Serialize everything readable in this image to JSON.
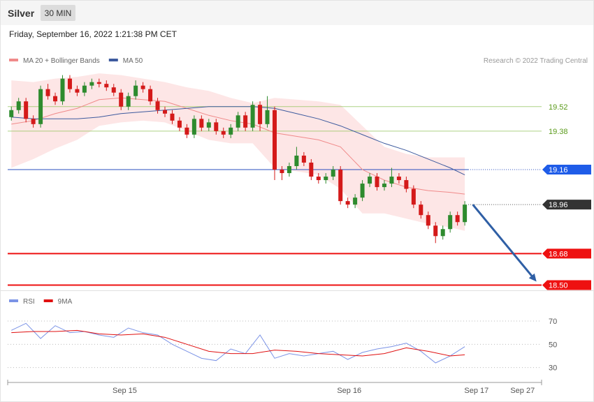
{
  "chart_data": {
    "type": "candlestick",
    "title": "Silver",
    "interval": "30 MIN",
    "subtitle": "Friday, September 16, 2022 1:21:38 PM CET",
    "credit": "Research © 2022 Trading Central",
    "up_color": "#2e8b2e",
    "down_color": "#d41a1a",
    "xlim": [
      -0.5,
      72.5
    ],
    "ylim": [
      18.47,
      19.89
    ],
    "xticks": [
      {
        "value": 15.5,
        "label": "Sep 15"
      },
      {
        "value": 46.2,
        "label": "Sep 16"
      },
      {
        "value": 63.6,
        "label": "Sep 17"
      },
      {
        "value": 69.9,
        "label": "Sep 27"
      }
    ],
    "open": [
      19.46,
      19.5,
      19.55,
      19.45,
      19.42,
      19.62,
      19.58,
      19.55,
      19.68,
      19.62,
      19.6,
      19.64,
      19.66,
      19.65,
      19.63,
      19.6,
      19.52,
      19.58,
      19.64,
      19.62,
      19.55,
      19.5,
      19.48,
      19.44,
      19.4,
      19.36,
      19.45,
      19.4,
      19.43,
      19.38,
      19.36,
      19.4,
      19.47,
      19.4,
      19.53,
      19.42,
      19.5,
      19.16,
      19.14,
      19.18,
      19.24,
      19.2,
      19.12,
      19.1,
      19.12,
      19.16,
      18.98,
      18.96,
      19.0,
      19.08,
      19.12,
      19.06,
      19.08,
      19.12,
      19.1,
      19.05,
      18.96,
      18.9,
      18.84,
      18.78,
      18.82,
      18.9,
      18.86
    ],
    "high": [
      19.52,
      19.57,
      19.57,
      19.47,
      19.64,
      19.65,
      19.6,
      19.7,
      19.7,
      19.64,
      19.66,
      19.68,
      19.68,
      19.67,
      19.65,
      19.62,
      19.6,
      19.67,
      19.66,
      19.64,
      19.57,
      19.52,
      19.5,
      19.46,
      19.42,
      19.47,
      19.47,
      19.45,
      19.45,
      19.4,
      19.42,
      19.49,
      19.49,
      19.55,
      19.55,
      19.58,
      19.52,
      19.18,
      19.2,
      19.29,
      19.26,
      19.22,
      19.14,
      19.14,
      19.18,
      19.18,
      19.0,
      19.02,
      19.1,
      19.14,
      19.14,
      19.1,
      19.17,
      19.14,
      19.12,
      19.07,
      18.98,
      18.92,
      18.86,
      18.84,
      18.92,
      18.92,
      18.98
    ],
    "low": [
      19.44,
      19.48,
      19.43,
      19.4,
      19.4,
      19.56,
      19.53,
      19.53,
      19.6,
      19.58,
      19.58,
      19.62,
      19.63,
      19.61,
      19.58,
      19.5,
      19.5,
      19.56,
      19.6,
      19.53,
      19.48,
      19.46,
      19.42,
      19.38,
      19.34,
      19.34,
      19.38,
      19.38,
      19.36,
      19.34,
      19.34,
      19.38,
      19.38,
      19.38,
      19.38,
      19.4,
      19.1,
      19.1,
      19.12,
      19.16,
      19.18,
      19.1,
      19.08,
      19.08,
      19.1,
      18.96,
      18.94,
      18.94,
      18.98,
      19.06,
      19.04,
      19.04,
      19.06,
      19.08,
      19.03,
      18.94,
      18.88,
      18.82,
      18.74,
      18.76,
      18.8,
      18.84,
      18.84
    ],
    "close": [
      19.5,
      19.55,
      19.45,
      19.42,
      19.62,
      19.58,
      19.55,
      19.68,
      19.62,
      19.6,
      19.64,
      19.66,
      19.65,
      19.63,
      19.6,
      19.52,
      19.58,
      19.64,
      19.62,
      19.55,
      19.5,
      19.48,
      19.44,
      19.4,
      19.36,
      19.45,
      19.4,
      19.43,
      19.38,
      19.36,
      19.4,
      19.47,
      19.4,
      19.53,
      19.42,
      19.5,
      19.16,
      19.14,
      19.18,
      19.24,
      19.2,
      19.12,
      19.1,
      19.12,
      19.16,
      18.98,
      18.96,
      19.0,
      19.08,
      19.12,
      19.06,
      19.08,
      19.12,
      19.1,
      19.05,
      18.96,
      18.9,
      18.84,
      18.78,
      18.82,
      18.9,
      18.86,
      18.96
    ],
    "indicator_x": [
      0,
      3,
      6,
      9,
      12,
      15,
      18,
      21,
      24,
      27,
      30,
      33,
      36,
      39,
      42,
      45,
      48,
      51,
      54,
      57,
      60,
      62
    ],
    "band_color": "#fde2e2",
    "series": [
      {
        "name": "MA 20 + Bollinger Bands",
        "color": "#f08a8a",
        "values": [
          19.42,
          19.44,
          19.48,
          19.51,
          19.56,
          19.57,
          19.56,
          19.55,
          19.51,
          19.47,
          19.44,
          19.42,
          19.37,
          19.35,
          19.33,
          19.29,
          19.16,
          19.1,
          19.06,
          19.04,
          19.03,
          19.02
        ],
        "upper": [
          19.67,
          19.66,
          19.68,
          19.69,
          19.71,
          19.7,
          19.68,
          19.66,
          19.63,
          19.61,
          19.57,
          19.54,
          19.57,
          19.56,
          19.55,
          19.53,
          19.41,
          19.29,
          19.25,
          19.23,
          19.23,
          19.23
        ],
        "lower": [
          19.17,
          19.22,
          19.28,
          19.33,
          19.41,
          19.43,
          19.44,
          19.43,
          19.38,
          19.33,
          19.31,
          19.31,
          19.17,
          19.15,
          19.13,
          19.05,
          18.91,
          18.91,
          18.88,
          18.85,
          18.83,
          18.81
        ]
      },
      {
        "name": "MA 50",
        "color": "#3d5a9e",
        "values": [
          19.46,
          19.45,
          19.45,
          19.45,
          19.46,
          19.48,
          19.49,
          19.5,
          19.51,
          19.52,
          19.52,
          19.52,
          19.51,
          19.48,
          19.45,
          19.41,
          19.36,
          19.31,
          19.27,
          19.22,
          19.17,
          19.13
        ]
      }
    ],
    "levels": [
      {
        "value": 19.52,
        "color": "#8cc152",
        "text_color": "#5a9a1a",
        "style": "solid",
        "boxed": false
      },
      {
        "value": 19.38,
        "color": "#8cc152",
        "text_color": "#5a9a1a",
        "style": "solid",
        "boxed": false
      },
      {
        "value": 19.16,
        "color": "#2a4fbf",
        "box_color": "#1f5ce8",
        "style": "solid-dotted",
        "boxed": true
      },
      {
        "value": 18.96,
        "color": "#555555",
        "box_color": "#333333",
        "style": "dotted",
        "boxed": true
      },
      {
        "value": 18.68,
        "color": "#ee1111",
        "box_color": "#ee1111",
        "style": "solid-thick",
        "boxed": true
      },
      {
        "value": 18.5,
        "label": "18.50",
        "color": "#ee1111",
        "box_color": "#ee1111",
        "style": "solid-thick",
        "boxed": true
      }
    ],
    "forecast": {
      "from": [
        63.1,
        18.96
      ],
      "to": [
        71.8,
        18.52
      ],
      "color": "#2f5fa5"
    },
    "rsi": {
      "ylim": [
        19,
        82
      ],
      "yticks": [
        30,
        50,
        70
      ],
      "series": [
        {
          "name": "RSI",
          "color": "#7b93e6",
          "x": [
            0,
            2,
            4,
            6,
            8,
            10,
            12,
            14,
            16,
            18,
            20,
            22,
            24,
            26,
            28,
            30,
            32,
            34,
            36,
            38,
            40,
            42,
            44,
            46,
            48,
            50,
            52,
            54,
            56,
            58,
            60,
            62
          ],
          "values": [
            62,
            68,
            55,
            66,
            60,
            61,
            58,
            56,
            64,
            60,
            58,
            50,
            44,
            38,
            36,
            46,
            42,
            58,
            38,
            42,
            40,
            42,
            44,
            37,
            43,
            46,
            48,
            51,
            44,
            34,
            40,
            48
          ]
        },
        {
          "name": "9MA",
          "color": "#e01010",
          "x": [
            0,
            3,
            6,
            9,
            12,
            15,
            18,
            21,
            24,
            27,
            30,
            33,
            36,
            39,
            42,
            45,
            48,
            51,
            54,
            57,
            60,
            62
          ],
          "values": [
            60,
            61,
            61,
            62,
            59,
            58,
            59,
            56,
            50,
            44,
            42,
            42,
            45,
            44,
            42,
            41,
            40,
            42,
            47,
            44,
            40,
            41
          ]
        }
      ]
    }
  }
}
